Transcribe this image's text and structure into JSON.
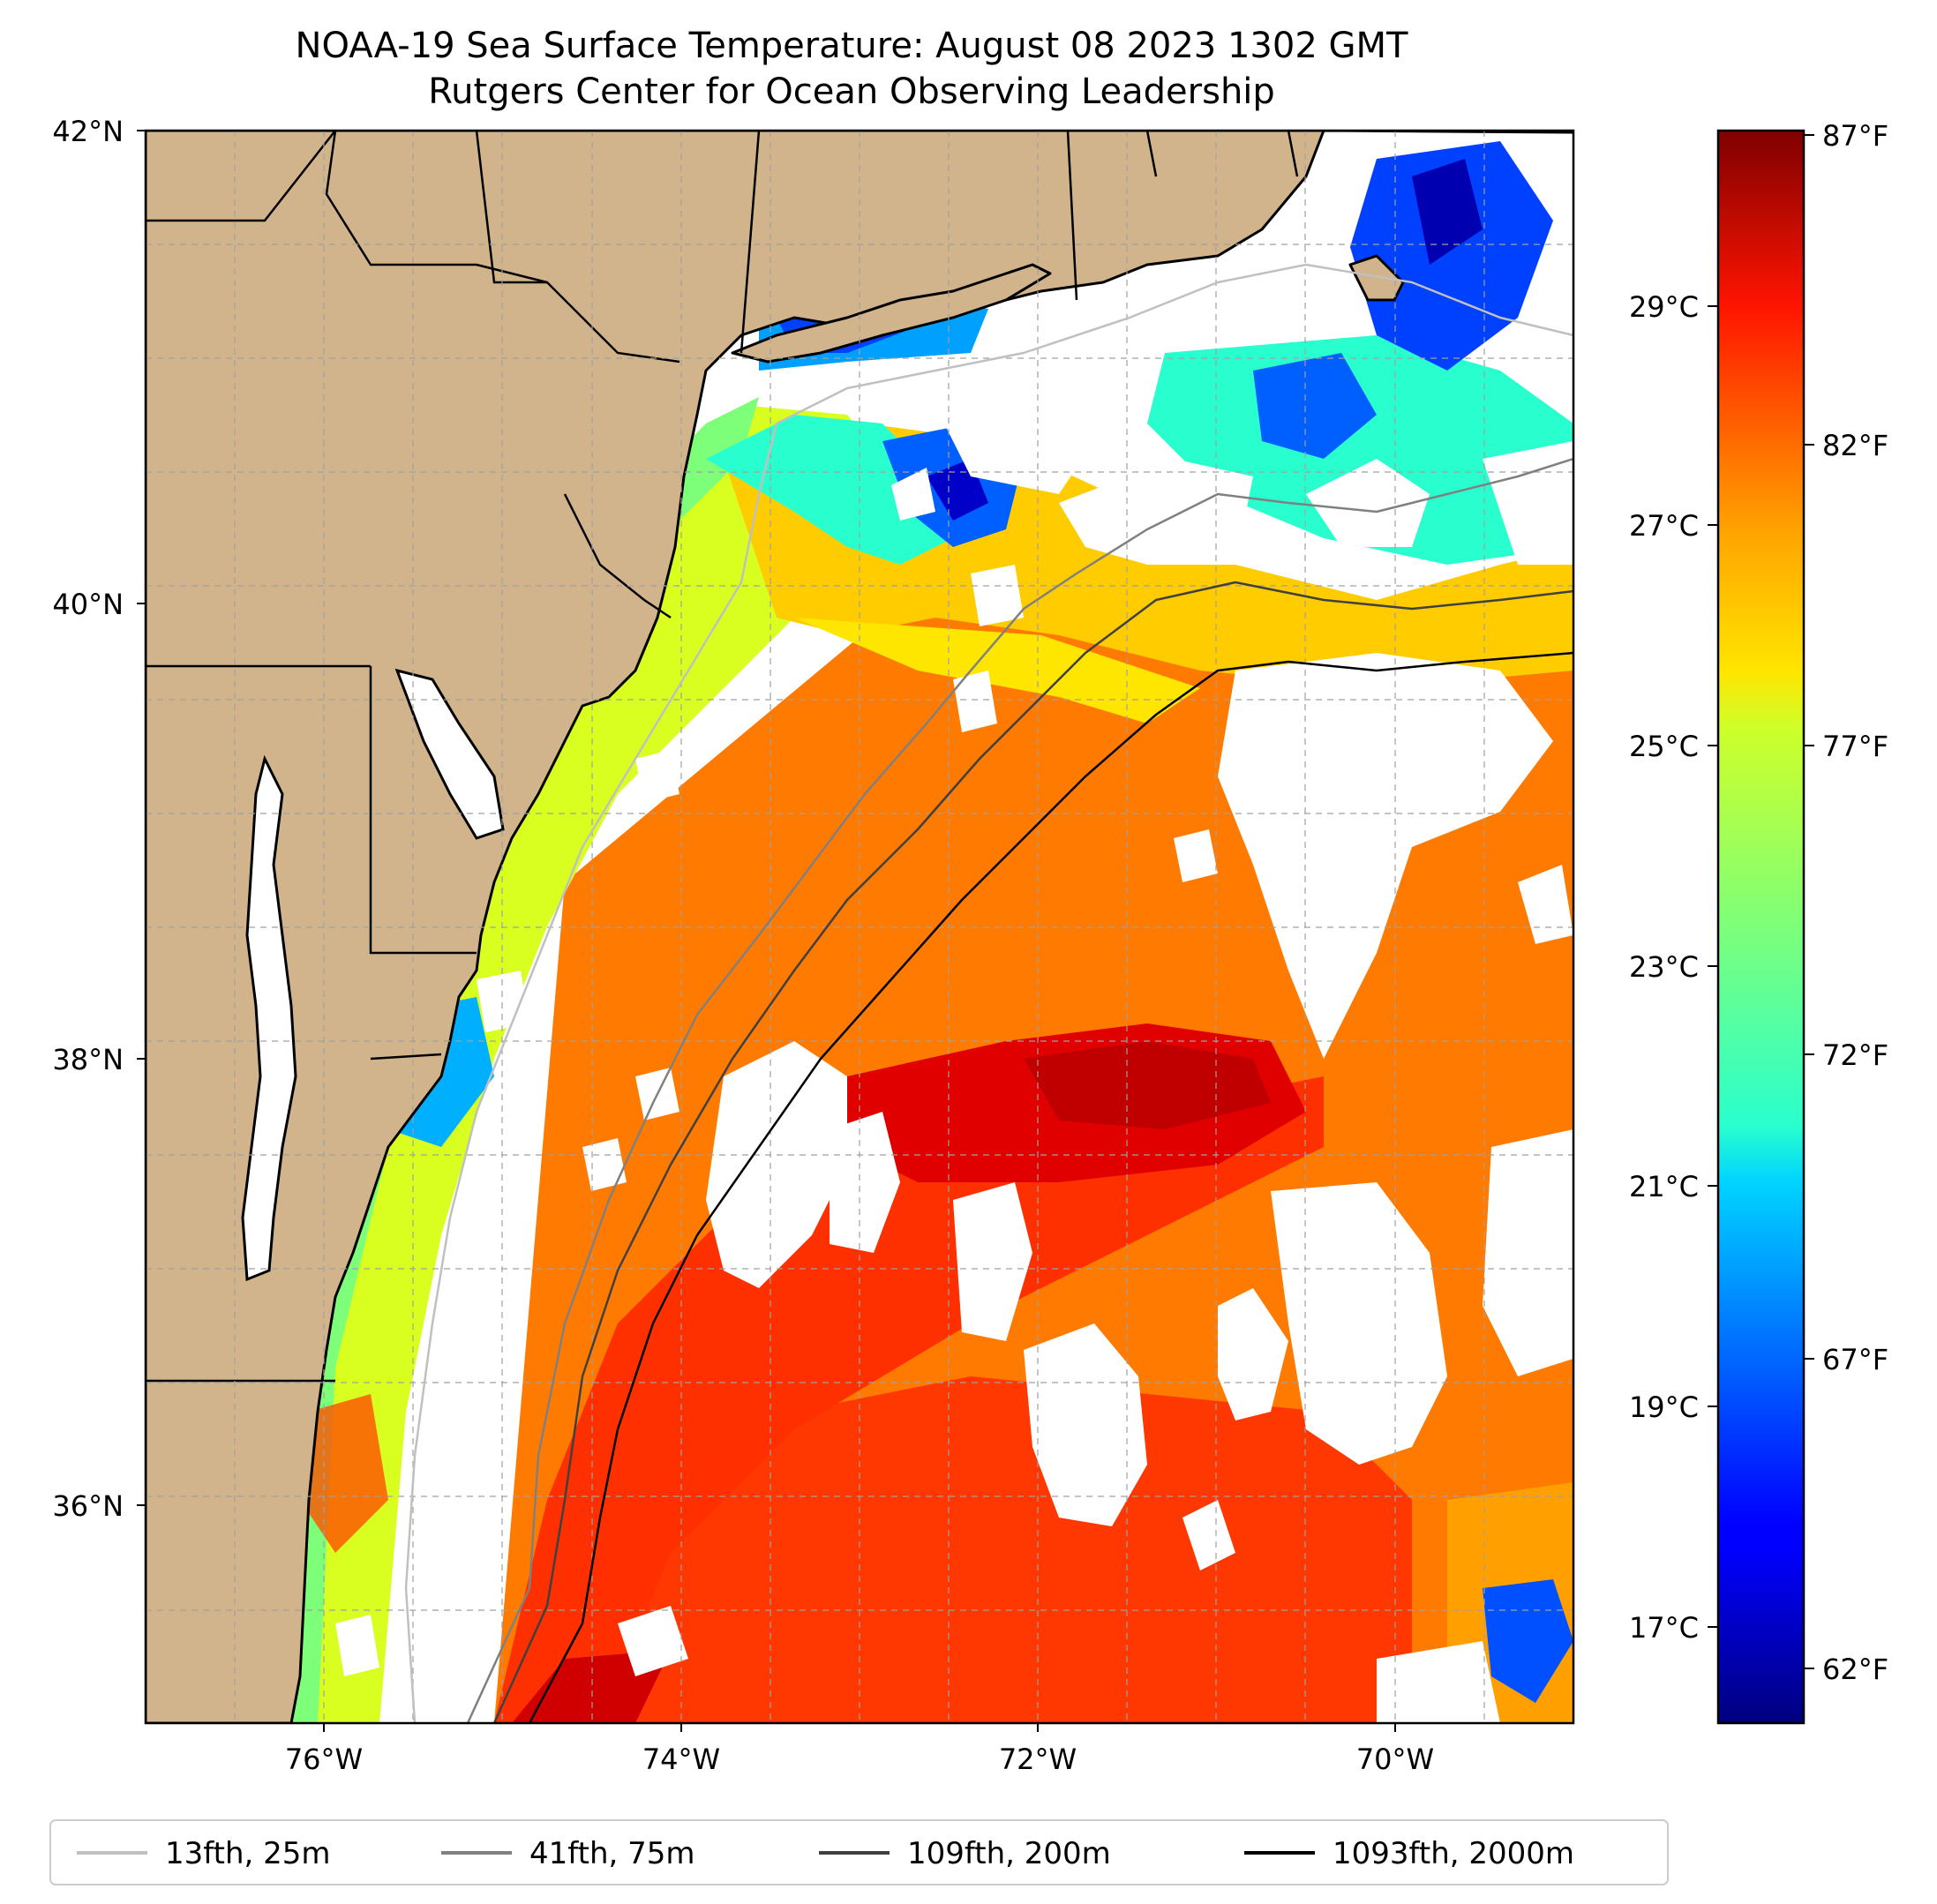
{
  "title": "NOAA-19 Sea Surface Temperature: August 08 2023 1302 GMT",
  "subtitle": "Rutgers Center for Ocean Observing Leadership",
  "map": {
    "lon_range": [
      -77,
      -69
    ],
    "lat_range": [
      35,
      42
    ],
    "lon_ticks": [
      "76°W",
      "74°W",
      "72°W",
      "70°W"
    ],
    "lat_ticks": [
      "42°N",
      "40°N",
      "38°N",
      "36°N"
    ],
    "gridlines": true,
    "land_color": "#d2b48c",
    "no_data_color": "#ffffff"
  },
  "colorbar": {
    "colormap": "jet",
    "fahrenheit_ticks": [
      "87°F",
      "82°F",
      "77°F",
      "72°F",
      "67°F",
      "62°F"
    ],
    "celsius_ticks": [
      "29°C",
      "27°C",
      "25°C",
      "23°C",
      "21°C",
      "19°C",
      "17°C"
    ]
  },
  "legend": {
    "placement": "bottom",
    "items": [
      {
        "label": "13fth, 25m",
        "color": "#c0c0c0"
      },
      {
        "label": "41fth, 75m",
        "color": "#808080"
      },
      {
        "label": "109fth, 200m",
        "color": "#404040"
      },
      {
        "label": "1093fth, 2000m",
        "color": "#000000"
      }
    ]
  }
}
